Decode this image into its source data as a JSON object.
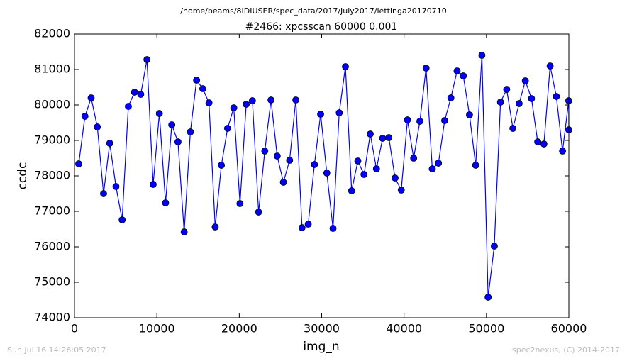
{
  "chart_data": {
    "type": "line",
    "suptitle": "/home/beams/8IDIUSER/spec_data/2017/July2017/lettinga20170710",
    "title": "#2466: xpcsscan 60000 0.001",
    "xlabel": "img_n",
    "ylabel": "ccdc",
    "footer_left": "Sun Jul 16 14:26:05 2017",
    "footer_right": "spec2nexus, (C) 2014-2017",
    "xlim": [
      0,
      60000
    ],
    "xticks": [
      0,
      10000,
      20000,
      30000,
      40000,
      50000,
      60000
    ],
    "ylim": [
      74000,
      82000
    ],
    "yticks": [
      74000,
      75000,
      76000,
      77000,
      78000,
      79000,
      80000,
      81000,
      82000
    ],
    "x": [
      516,
      1269,
      2022,
      2774,
      3527,
      4280,
      5033,
      5786,
      6538,
      7291,
      8044,
      8797,
      9550,
      10302,
      11055,
      11808,
      12561,
      13314,
      14066,
      14819,
      15572,
      16325,
      17078,
      17830,
      18583,
      19336,
      20089,
      20842,
      21594,
      22347,
      23100,
      23853,
      24606,
      25358,
      26111,
      26864,
      27617,
      28370,
      29122,
      29875,
      30628,
      31381,
      32134,
      32886,
      33639,
      34392,
      35145,
      35898,
      36650,
      37403,
      38156,
      38909,
      39662,
      40414,
      41167,
      41920,
      42673,
      43426,
      44178,
      44931,
      45684,
      46437,
      47190,
      47942,
      48695,
      49448,
      50201,
      50954,
      51706,
      52459,
      53212,
      53965,
      54718,
      55470,
      56223,
      56976,
      57729,
      58482,
      59234,
      59987,
      60000
    ],
    "series": [
      {
        "color": "#0000ff",
        "values": [
          78340,
          79680,
          80200,
          79380,
          77500,
          78920,
          77700,
          76760,
          79960,
          80360,
          80300,
          81280,
          77760,
          79760,
          77240,
          79440,
          78960,
          76420,
          79240,
          80700,
          80460,
          80060,
          76560,
          78300,
          79340,
          79920,
          77220,
          80020,
          80120,
          76980,
          78700,
          80140,
          78560,
          77820,
          78440,
          80140,
          76540,
          76640,
          78320,
          79740,
          78080,
          76520,
          79780,
          81080,
          77580,
          78420,
          78040,
          79180,
          78200,
          79060,
          79080,
          77940,
          77600,
          79580,
          78500,
          79540,
          81040,
          78200,
          78360,
          79560,
          80200,
          80960,
          80820,
          79720,
          78300,
          81400,
          74580,
          76020,
          80080,
          80440,
          79340,
          80040,
          80680,
          80180,
          78960,
          78900,
          81100,
          80240,
          78700,
          80120,
          79300
        ]
      }
    ]
  }
}
